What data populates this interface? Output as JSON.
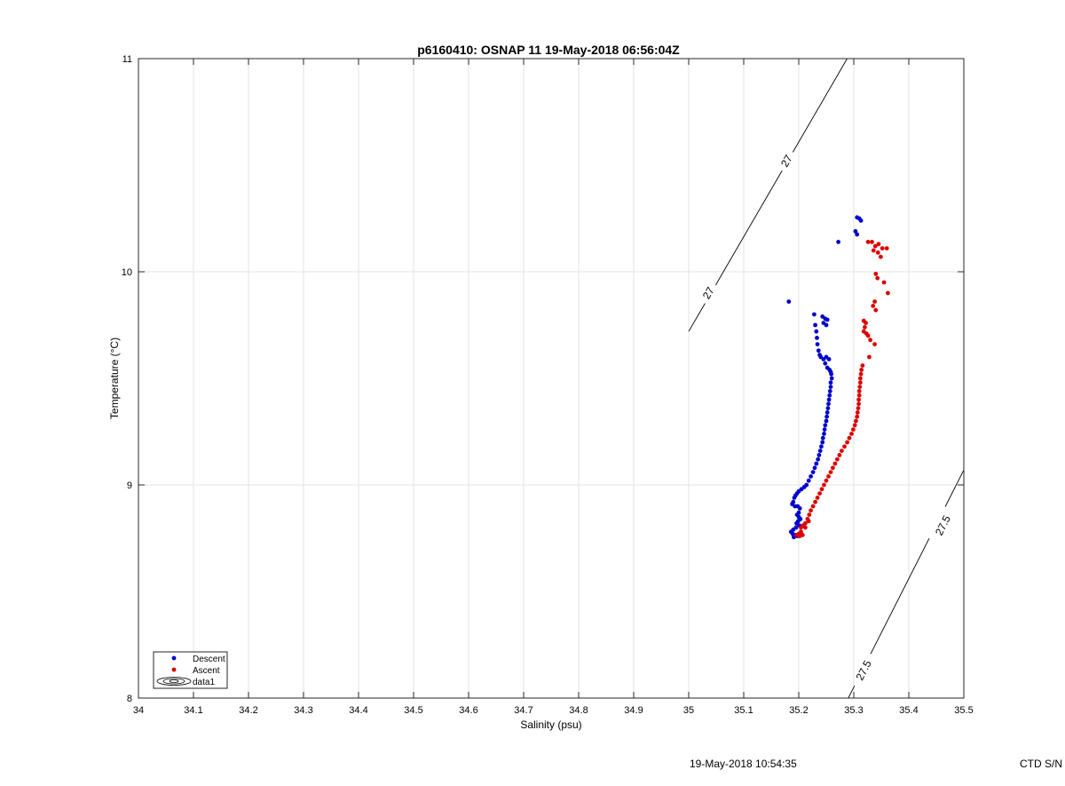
{
  "chart_data": {
    "type": "scatter",
    "title": "p6160410: OSNAP 11 19-May-2018 06:56:04Z",
    "xlabel": "Salinity (psu)",
    "ylabel": "Temperature (°C)",
    "xlim": [
      34,
      35.5
    ],
    "ylim": [
      8,
      11
    ],
    "x_ticks": [
      "34",
      "34.1",
      "34.2",
      "34.3",
      "34.4",
      "34.5",
      "34.6",
      "34.7",
      "34.8",
      "34.9",
      "35",
      "35.1",
      "35.2",
      "35.3",
      "35.4",
      "35.5"
    ],
    "y_ticks": [
      "8",
      "9",
      "10",
      "11"
    ],
    "grid": true,
    "legend_position": "bottom-left",
    "legend": [
      "Descent",
      "Ascent",
      "data1"
    ],
    "colors": {
      "descent": "#0000cc",
      "ascent": "#dd0000",
      "contour": "#000000",
      "grid": "#e3e3e3"
    },
    "series": [
      {
        "name": "Descent",
        "points": [
          [
            35.306,
            10.255
          ],
          [
            35.31,
            10.25
          ],
          [
            35.313,
            10.24
          ],
          [
            35.303,
            10.19
          ],
          [
            35.306,
            10.175
          ],
          [
            35.272,
            10.14
          ],
          [
            35.182,
            9.86
          ],
          [
            35.228,
            9.8
          ],
          [
            35.243,
            9.79
          ],
          [
            35.248,
            9.78
          ],
          [
            35.252,
            9.775
          ],
          [
            35.245,
            9.76
          ],
          [
            35.25,
            9.75
          ],
          [
            35.23,
            9.75
          ],
          [
            35.232,
            9.72
          ],
          [
            35.233,
            9.69
          ],
          [
            35.234,
            9.66
          ],
          [
            35.236,
            9.63
          ],
          [
            35.238,
            9.61
          ],
          [
            35.24,
            9.6
          ],
          [
            35.245,
            9.59
          ],
          [
            35.25,
            9.6
          ],
          [
            35.255,
            9.59
          ],
          [
            35.248,
            9.57
          ],
          [
            35.252,
            9.55
          ],
          [
            35.256,
            9.54
          ],
          [
            35.258,
            9.53
          ],
          [
            35.259,
            9.52
          ],
          [
            35.26,
            9.5
          ],
          [
            35.258,
            9.48
          ],
          [
            35.258,
            9.46
          ],
          [
            35.257,
            9.44
          ],
          [
            35.256,
            9.42
          ],
          [
            35.255,
            9.4
          ],
          [
            35.254,
            9.38
          ],
          [
            35.253,
            9.36
          ],
          [
            35.252,
            9.34
          ],
          [
            35.251,
            9.32
          ],
          [
            35.25,
            9.3
          ],
          [
            35.248,
            9.28
          ],
          [
            35.247,
            9.26
          ],
          [
            35.246,
            9.24
          ],
          [
            35.244,
            9.22
          ],
          [
            35.243,
            9.2
          ],
          [
            35.241,
            9.18
          ],
          [
            35.239,
            9.16
          ],
          [
            35.237,
            9.14
          ],
          [
            35.235,
            9.12
          ],
          [
            35.232,
            9.1
          ],
          [
            35.229,
            9.08
          ],
          [
            35.226,
            9.06
          ],
          [
            35.222,
            9.04
          ],
          [
            35.218,
            9.02
          ],
          [
            35.214,
            9.0
          ],
          [
            35.21,
            8.99
          ],
          [
            35.205,
            8.98
          ],
          [
            35.2,
            8.97
          ],
          [
            35.197,
            8.96
          ],
          [
            35.194,
            8.95
          ],
          [
            35.192,
            8.94
          ],
          [
            35.19,
            8.92
          ],
          [
            35.188,
            8.91
          ],
          [
            35.193,
            8.9
          ],
          [
            35.198,
            8.9
          ],
          [
            35.202,
            8.89
          ],
          [
            35.2,
            8.87
          ],
          [
            35.197,
            8.86
          ],
          [
            35.2,
            8.85
          ],
          [
            35.203,
            8.84
          ],
          [
            35.199,
            8.83
          ],
          [
            35.196,
            8.82
          ],
          [
            35.201,
            8.81
          ],
          [
            35.195,
            8.8
          ],
          [
            35.19,
            8.79
          ],
          [
            35.186,
            8.78
          ],
          [
            35.189,
            8.77
          ],
          [
            35.193,
            8.765
          ],
          [
            35.197,
            8.76
          ],
          [
            35.201,
            8.76
          ],
          [
            35.191,
            8.755
          ]
        ]
      },
      {
        "name": "Ascent",
        "points": [
          [
            35.326,
            10.14
          ],
          [
            35.333,
            10.14
          ],
          [
            35.339,
            10.12
          ],
          [
            35.345,
            10.13
          ],
          [
            35.352,
            10.11
          ],
          [
            35.36,
            10.11
          ],
          [
            35.336,
            10.1
          ],
          [
            35.344,
            10.09
          ],
          [
            35.349,
            10.07
          ],
          [
            35.34,
            9.99
          ],
          [
            35.343,
            9.97
          ],
          [
            35.355,
            9.95
          ],
          [
            35.362,
            9.9
          ],
          [
            35.338,
            9.86
          ],
          [
            35.335,
            9.84
          ],
          [
            35.34,
            9.82
          ],
          [
            35.318,
            9.77
          ],
          [
            35.322,
            9.76
          ],
          [
            35.32,
            9.74
          ],
          [
            35.318,
            9.72
          ],
          [
            35.323,
            9.71
          ],
          [
            35.326,
            9.7
          ],
          [
            35.33,
            9.68
          ],
          [
            35.338,
            9.66
          ],
          [
            35.328,
            9.6
          ],
          [
            35.316,
            9.56
          ],
          [
            35.314,
            9.54
          ],
          [
            35.313,
            9.52
          ],
          [
            35.312,
            9.5
          ],
          [
            35.312,
            9.48
          ],
          [
            35.311,
            9.46
          ],
          [
            35.31,
            9.44
          ],
          [
            35.31,
            9.42
          ],
          [
            35.309,
            9.4
          ],
          [
            35.309,
            9.38
          ],
          [
            35.308,
            9.36
          ],
          [
            35.307,
            9.34
          ],
          [
            35.306,
            9.32
          ],
          [
            35.304,
            9.3
          ],
          [
            35.302,
            9.28
          ],
          [
            35.299,
            9.26
          ],
          [
            35.296,
            9.24
          ],
          [
            35.292,
            9.22
          ],
          [
            35.288,
            9.2
          ],
          [
            35.283,
            9.18
          ],
          [
            35.278,
            9.16
          ],
          [
            35.274,
            9.14
          ],
          [
            35.27,
            9.12
          ],
          [
            35.266,
            9.1
          ],
          [
            35.262,
            9.08
          ],
          [
            35.258,
            9.06
          ],
          [
            35.254,
            9.04
          ],
          [
            35.25,
            9.02
          ],
          [
            35.246,
            9.0
          ],
          [
            35.242,
            8.98
          ],
          [
            35.238,
            8.96
          ],
          [
            35.234,
            8.94
          ],
          [
            35.23,
            8.92
          ],
          [
            35.226,
            8.9
          ],
          [
            35.222,
            8.88
          ],
          [
            35.219,
            8.86
          ],
          [
            35.216,
            8.84
          ],
          [
            35.212,
            8.82
          ],
          [
            35.208,
            8.81
          ],
          [
            35.204,
            8.8
          ],
          [
            35.212,
            8.8
          ],
          [
            35.218,
            8.83
          ],
          [
            35.204,
            8.78
          ],
          [
            35.2,
            8.77
          ],
          [
            35.196,
            8.765
          ],
          [
            35.202,
            8.76
          ],
          [
            35.207,
            8.765
          ]
        ]
      }
    ],
    "contours": [
      {
        "name": "data1",
        "level": "27",
        "line": [
          [
            35.0,
            9.72
          ],
          [
            35.288,
            11.0
          ]
        ],
        "labels": [
          {
            "text": "27",
            "at": [
              35.036,
              9.9
            ]
          },
          {
            "text": "27",
            "at": [
              35.178,
              10.52
            ]
          }
        ]
      },
      {
        "name": "data1",
        "level": "27.5",
        "line": [
          [
            35.29,
            8.0
          ],
          [
            35.5,
            9.07
          ]
        ],
        "labels": [
          {
            "text": "27.5",
            "at": [
              35.318,
              8.13
            ]
          },
          {
            "text": "27.5",
            "at": [
              35.462,
              8.81
            ]
          }
        ]
      }
    ]
  },
  "footer": {
    "timestamp": "19-May-2018 10:54:35",
    "ctd": "CTD S/N"
  }
}
